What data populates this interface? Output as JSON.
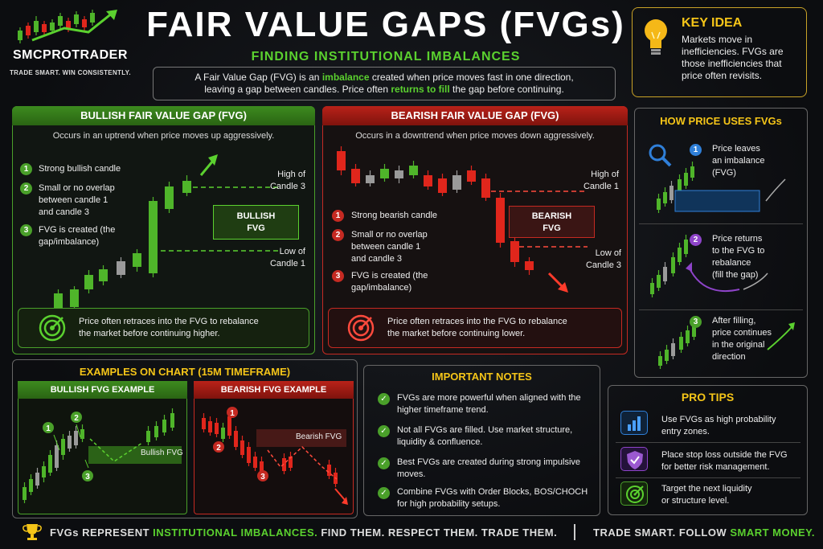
{
  "brand": {
    "name": "SMCPROTRADER",
    "tagline": "TRADE SMART. WIN CONSISTENTLY."
  },
  "title": "FAIR VALUE GAPS (FVGs)",
  "subtitle": "FINDING INSTITUTIONAL IMBALANCES",
  "intro": {
    "line1_a": "A Fair Value Gap (FVG) is an ",
    "line1_hl": "imbalance",
    "line1_b": " created when price moves fast in one direction,",
    "line2_a": "leaving a gap between candles. Price often ",
    "line2_hl": "returns to fill",
    "line2_b": " the gap before continuing."
  },
  "key_idea": {
    "title": "KEY IDEA",
    "text": "Markets move in inefficiencies. FVGs are those inefficiencies that price often revisits.",
    "icon": "lightbulb-icon"
  },
  "bullish": {
    "header": "BULLISH FAIR VALUE GAP (FVG)",
    "desc": "Occurs in an uptrend when price moves up aggressively.",
    "steps": [
      "Strong bullish candle",
      "Small or no overlap between candle 1 and candle 3",
      "FVG is created (the gap/imbalance)"
    ],
    "high_label_1": "High of",
    "high_label_2": "Candle 3",
    "low_label_1": "Low of",
    "low_label_2": "Candle 1",
    "fvg_1": "BULLISH",
    "fvg_2": "FVG",
    "retrace_1": "Price often retraces into the FVG to rebalance",
    "retrace_2": "the market before continuing higher."
  },
  "bearish": {
    "header": "BEARISH FAIR VALUE GAP (FVG)",
    "desc": "Occurs in a downtrend when price moves down aggressively.",
    "steps": [
      "Strong bearish candle",
      "Small or no overlap between candle 1 and candle 3",
      "FVG is created (the gap/imbalance)"
    ],
    "high_label_1": "High of",
    "high_label_2": "Candle 1",
    "low_label_1": "Low of",
    "low_label_2": "Candle 3",
    "fvg_1": "BEARISH",
    "fvg_2": "FVG",
    "retrace_1": "Price often retraces into the FVG to rebalance",
    "retrace_2": "the market before continuing lower."
  },
  "how_price": {
    "title": "HOW PRICE USES FVGs",
    "steps": [
      {
        "num": "1",
        "l1": "Price leaves",
        "l2": "an imbalance",
        "l3": "(FVG)"
      },
      {
        "num": "2",
        "l1": "Price returns",
        "l2": "to the FVG to",
        "l3": "rebalance",
        "l4": "(fill the gap)"
      },
      {
        "num": "3",
        "l1": "After filling,",
        "l2": "price continues",
        "l3": "in the original",
        "l4": "direction"
      }
    ]
  },
  "examples": {
    "title": "EXAMPLES ON CHART (15M TIMEFRAME)",
    "bull_title": "BULLISH FVG EXAMPLE",
    "bear_title": "BEARISH FVG EXAMPLE",
    "bull_label": "Bullish FVG",
    "bear_label": "Bearish FVG"
  },
  "notes": {
    "title": "IMPORTANT NOTES",
    "items": [
      {
        "l1": "FVGs are more powerful when aligned with the",
        "l2": "higher timeframe trend."
      },
      {
        "l1": "Not all FVGs are filled. Use market structure,",
        "l2": "liquidity & confluence."
      },
      {
        "l1": "Best FVGs are created during strong impulsive",
        "l2": "moves."
      },
      {
        "l1": "Combine FVGs with Order Blocks, BOS/CHOCH",
        "l2": "for high probability setups."
      }
    ]
  },
  "tips": {
    "title": "PRO TIPS",
    "items": [
      {
        "l1": "Use FVGs as high probability",
        "l2": "entry zones.",
        "icon": "bar-chart-icon"
      },
      {
        "l1": "Place stop loss outside the FVG",
        "l2": "for better risk management.",
        "icon": "shield-icon"
      },
      {
        "l1": "Target the next liquidity",
        "l2": "or structure level.",
        "icon": "target-icon"
      }
    ]
  },
  "footer": {
    "left_a": "FVGs REPRESENT ",
    "left_hl": "INSTITUTIONAL IMBALANCES.",
    "left_b": "  FIND THEM. RESPECT THEM. TRADE THEM.",
    "right_a": "TRADE SMART. FOLLOW ",
    "right_hl": "SMART MONEY."
  },
  "colors": {
    "bull": "#4aa02a",
    "bear": "#c52a22",
    "accent": "#f5c518"
  }
}
